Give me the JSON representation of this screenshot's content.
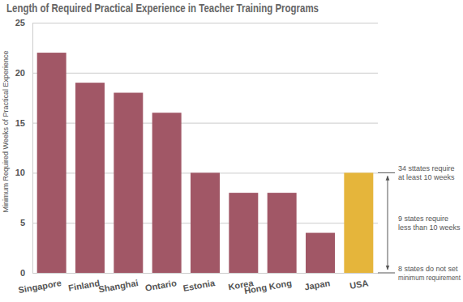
{
  "chart_data": {
    "type": "bar",
    "title": "Length of Required Practical Experience in Teacher Training Programs",
    "y_label": "Minimum Required Weeks of Practical Experience",
    "categories": [
      "Singapore",
      "Finland",
      "Shanghai",
      "Ontario",
      "Estonia",
      "Korea",
      "Hong Kong",
      "Japan",
      "USA"
    ],
    "values": [
      22,
      19,
      18,
      16,
      10,
      8,
      8,
      4,
      10
    ],
    "colors": [
      "#a15766",
      "#a15766",
      "#a15766",
      "#a15766",
      "#a15766",
      "#a15766",
      "#a15766",
      "#a15766",
      "#e5b53b"
    ],
    "ylim": [
      0,
      25
    ],
    "yticks": [
      0,
      5,
      10,
      15,
      20,
      25
    ],
    "grid": true,
    "annotations": [
      [
        "34 sttates require",
        "at least 10 weeks"
      ],
      [
        "9 states require",
        "less than 10 weeks"
      ],
      [
        "8 states do not set",
        "minimum requirement"
      ]
    ]
  }
}
